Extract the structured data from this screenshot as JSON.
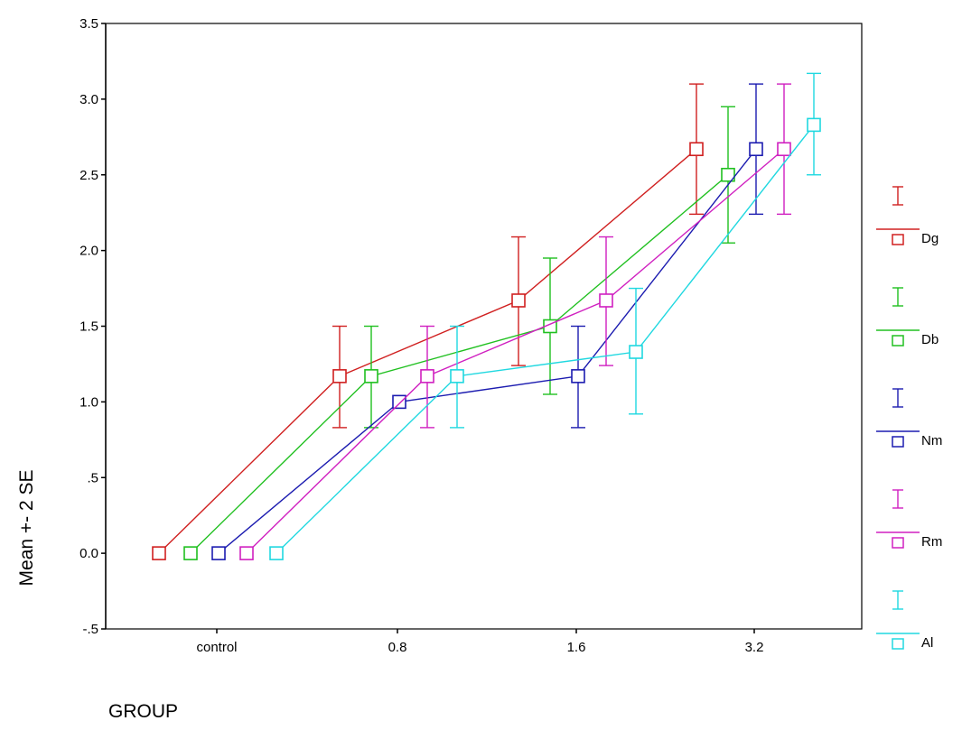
{
  "chart_data": {
    "type": "line",
    "title": "",
    "xlabel": "GROUP",
    "ylabel": "Mean +- 2 SE",
    "ylim": [
      -0.5,
      3.5
    ],
    "y_ticks": [
      "-.5",
      "0.0",
      ".5",
      "1.0",
      "1.5",
      "2.0",
      "2.5",
      "3.0",
      "3.5"
    ],
    "categories": [
      "control",
      "0.8",
      "1.6",
      "3.2"
    ],
    "grid": false,
    "legend_position": "right",
    "error_bars": "mean +/- 2 SE",
    "series": [
      {
        "name": "Dg",
        "color": "#d02020",
        "values": [
          0.0,
          1.17,
          1.67,
          2.67
        ],
        "lower": [
          0.0,
          0.83,
          1.24,
          2.24
        ],
        "upper": [
          0.0,
          1.5,
          2.09,
          3.1
        ]
      },
      {
        "name": "Db",
        "color": "#20c020",
        "values": [
          0.0,
          1.17,
          1.5,
          2.5
        ],
        "lower": [
          0.0,
          0.83,
          1.05,
          2.05
        ],
        "upper": [
          0.0,
          1.5,
          1.95,
          2.95
        ]
      },
      {
        "name": "Nm",
        "color": "#1c1cb0",
        "values": [
          0.0,
          1.0,
          1.17,
          2.67
        ],
        "lower": [
          0.0,
          1.0,
          0.83,
          2.24
        ],
        "upper": [
          0.0,
          1.0,
          1.5,
          3.1
        ]
      },
      {
        "name": "Rm",
        "color": "#d020c0",
        "values": [
          0.0,
          1.17,
          1.67,
          2.67
        ],
        "lower": [
          0.0,
          0.83,
          1.24,
          2.24
        ],
        "upper": [
          0.0,
          1.5,
          2.09,
          3.1
        ]
      },
      {
        "name": "Al",
        "color": "#20d8e0",
        "values": [
          0.0,
          1.17,
          1.33,
          2.83
        ],
        "lower": [
          0.0,
          0.83,
          0.92,
          2.5
        ],
        "upper": [
          0.0,
          1.5,
          1.75,
          3.17
        ]
      }
    ]
  }
}
